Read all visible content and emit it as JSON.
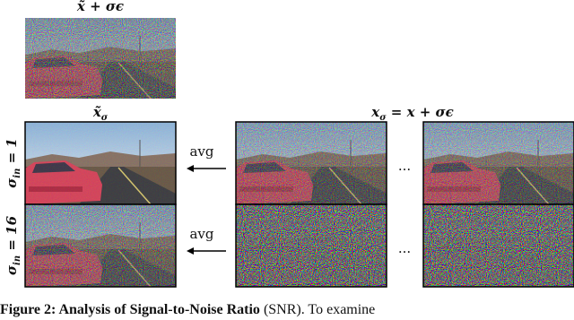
{
  "top_label": {
    "text": "x̃ + σϵ"
  },
  "left_label": {
    "base": "x̃",
    "sub": "σ"
  },
  "right_label": {
    "text": "x",
    "sub": "σ",
    "rest": " = x + σϵ"
  },
  "rows": [
    {
      "label": {
        "base": "σ",
        "sub": "in",
        "rest": " = 1"
      },
      "op": "avg"
    },
    {
      "label": {
        "base": "σ",
        "sub": "in",
        "rest": " = 16"
      },
      "op": "avg"
    }
  ],
  "ellipsis": "...",
  "caption": {
    "bold": "Figure 2: Analysis of Signal-to-Noise Ratio",
    "text": " (SNR). To examine"
  }
}
